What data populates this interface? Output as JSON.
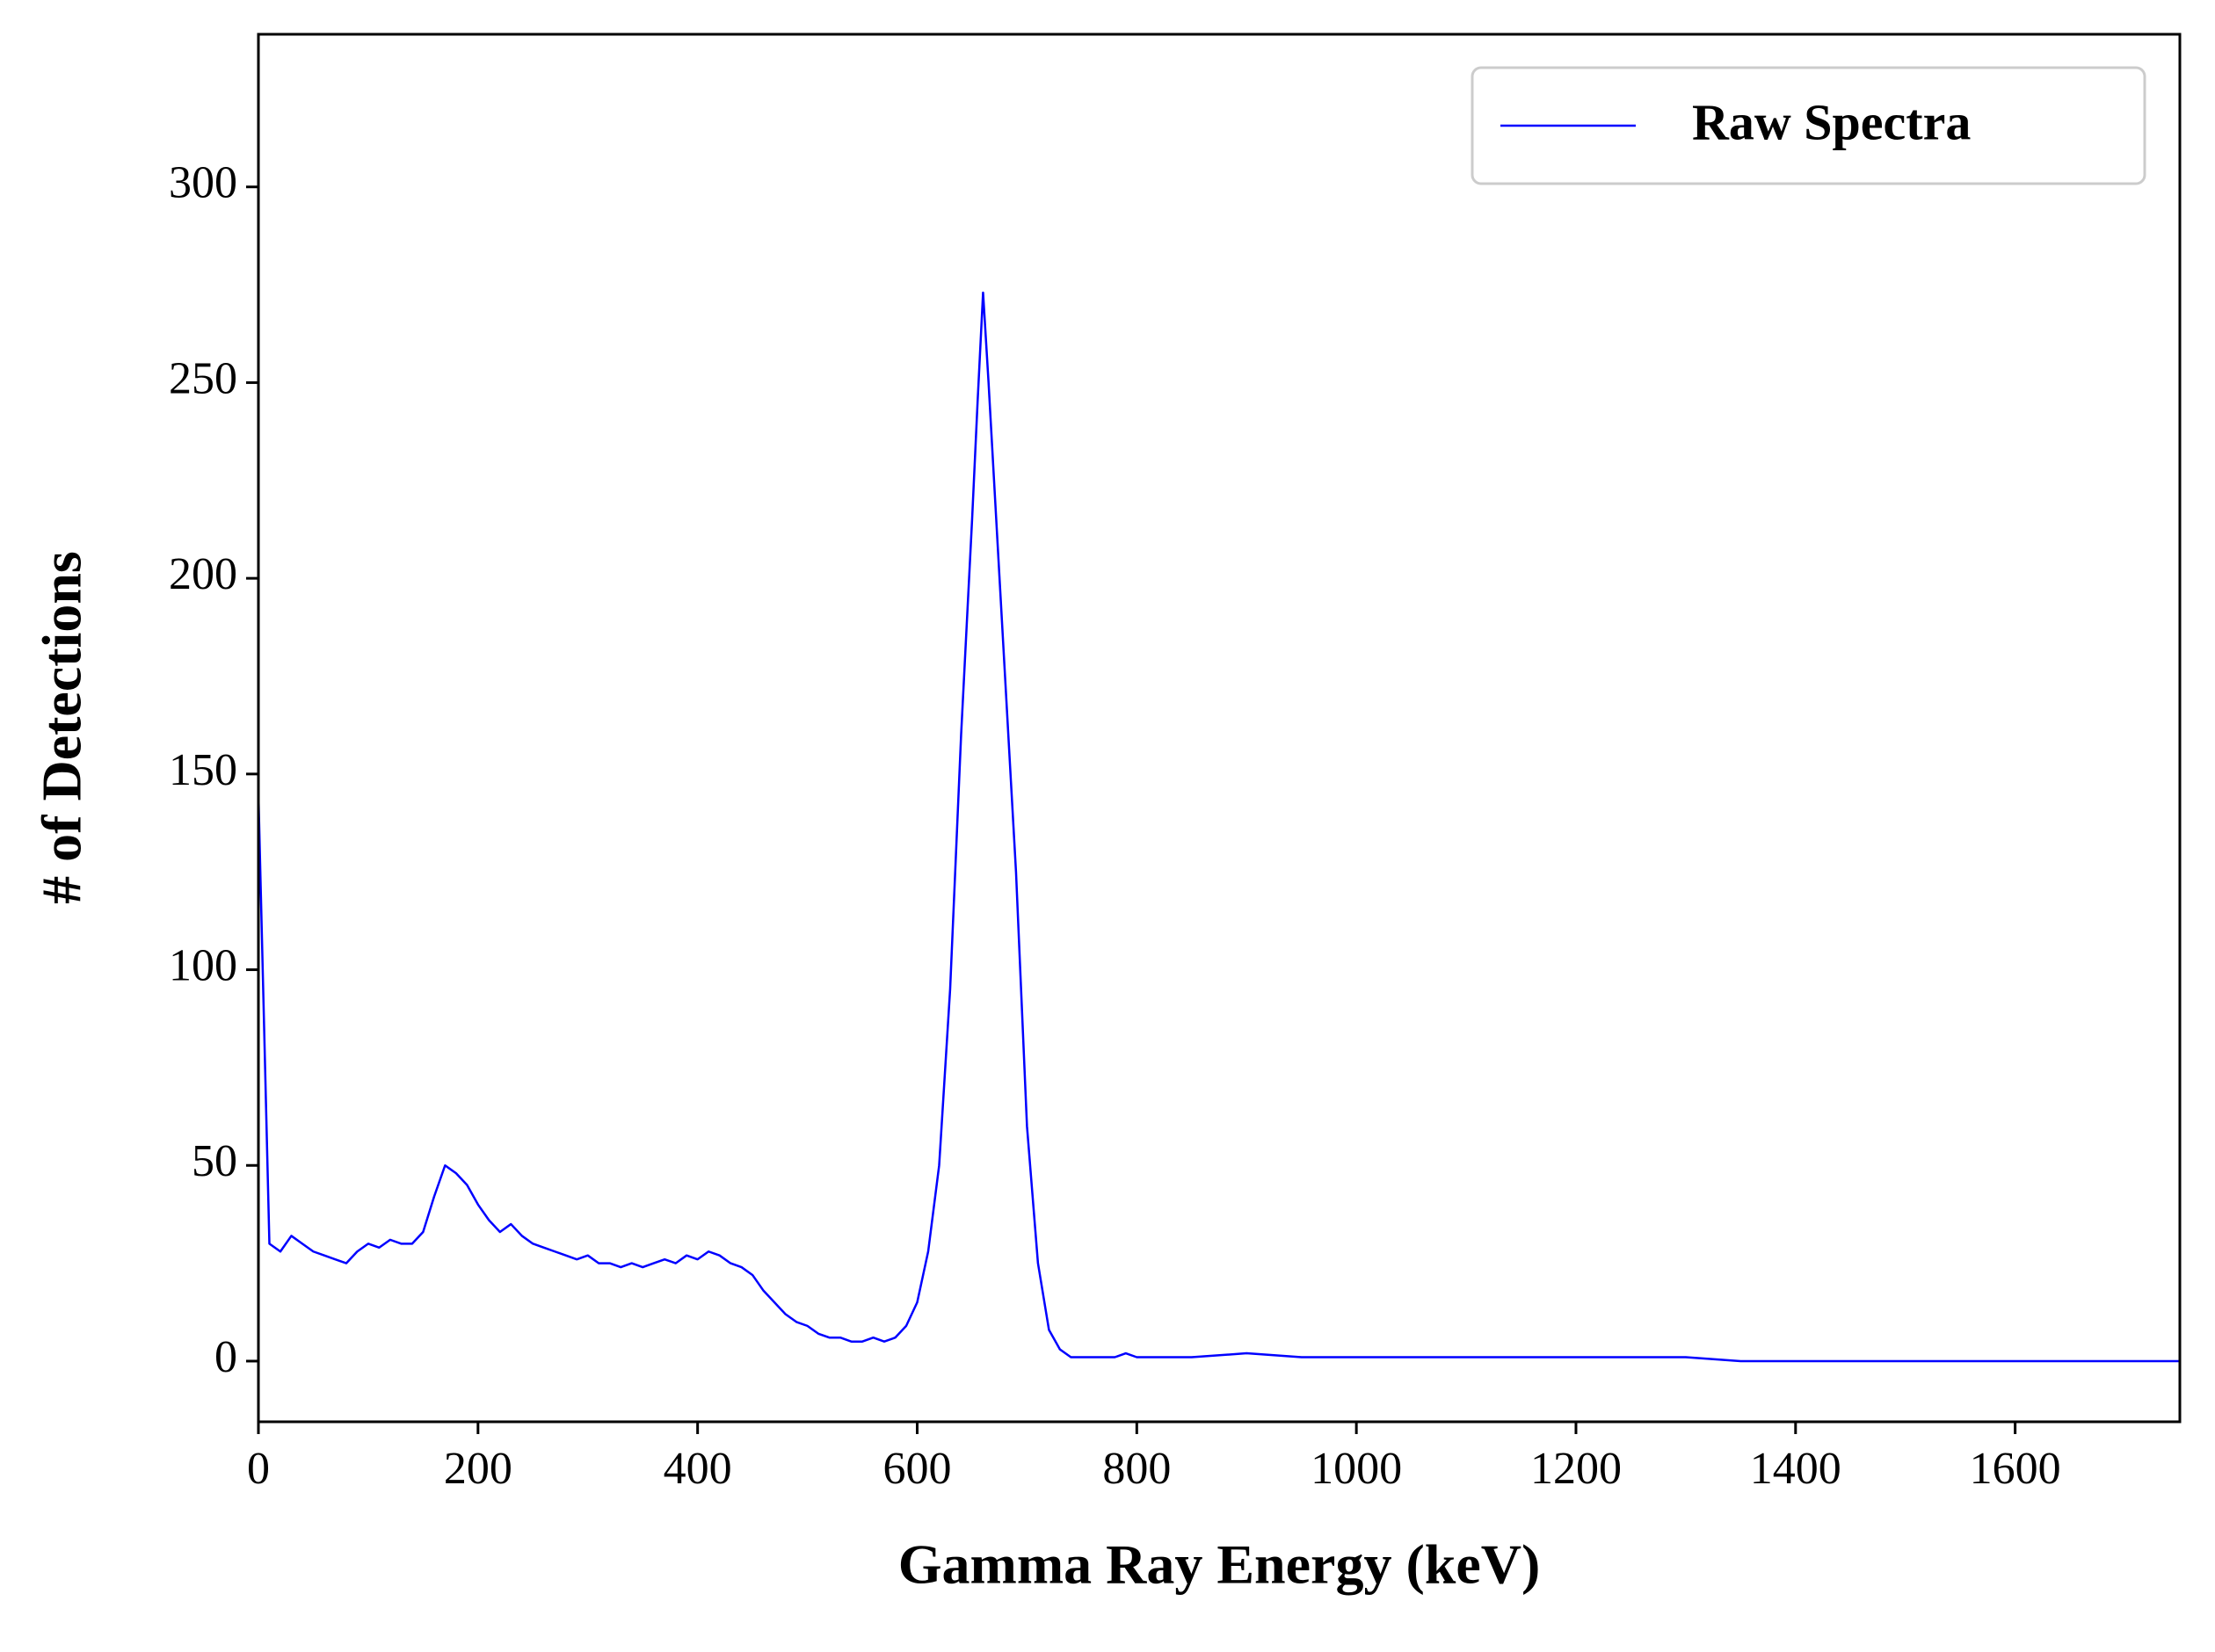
{
  "chart_data": {
    "type": "line",
    "x_label": "Gamma Ray Energy (keV)",
    "y_label": "# of Detections",
    "x": [
      0,
      10,
      20,
      30,
      40,
      50,
      60,
      70,
      80,
      90,
      100,
      110,
      120,
      130,
      140,
      150,
      160,
      170,
      180,
      190,
      200,
      210,
      220,
      230,
      240,
      250,
      260,
      270,
      280,
      290,
      300,
      310,
      320,
      330,
      340,
      350,
      360,
      370,
      380,
      390,
      400,
      410,
      420,
      430,
      440,
      450,
      460,
      470,
      480,
      490,
      500,
      510,
      520,
      530,
      540,
      550,
      560,
      570,
      580,
      590,
      600,
      610,
      620,
      630,
      640,
      650,
      655,
      660,
      665,
      670,
      680,
      690,
      700,
      710,
      720,
      730,
      740,
      750,
      760,
      770,
      780,
      790,
      800,
      850,
      900,
      950,
      1000,
      1050,
      1100,
      1150,
      1200,
      1250,
      1300,
      1350,
      1400,
      1450,
      1500,
      1550,
      1600,
      1650,
      1700,
      1750
    ],
    "series": [
      {
        "name": "Raw Spectra",
        "color": "#0000ff",
        "values": [
          145,
          30,
          28,
          32,
          30,
          28,
          27,
          26,
          25,
          28,
          30,
          29,
          31,
          30,
          30,
          33,
          42,
          50,
          48,
          45,
          40,
          36,
          33,
          35,
          32,
          30,
          29,
          28,
          27,
          26,
          27,
          25,
          25,
          24,
          25,
          24,
          25,
          26,
          25,
          27,
          26,
          28,
          27,
          25,
          24,
          22,
          18,
          15,
          12,
          10,
          9,
          7,
          6,
          6,
          5,
          5,
          6,
          5,
          6,
          9,
          15,
          28,
          50,
          95,
          160,
          215,
          245,
          273,
          250,
          225,
          175,
          125,
          60,
          25,
          8,
          3,
          1,
          1,
          1,
          1,
          1,
          2,
          1,
          1,
          2,
          1,
          1,
          1,
          1,
          1,
          1,
          1,
          1,
          0,
          0,
          0,
          0,
          0,
          0,
          0,
          0,
          0
        ]
      }
    ],
    "xlim": [
      0,
      1750
    ],
    "ylim": [
      -15.5,
      339
    ],
    "xticks": [
      0,
      200,
      400,
      600,
      800,
      1000,
      1200,
      1400,
      1600
    ],
    "yticks": [
      0,
      50,
      100,
      150,
      200,
      250,
      300
    ],
    "legend": "upper right",
    "grid": false
  }
}
